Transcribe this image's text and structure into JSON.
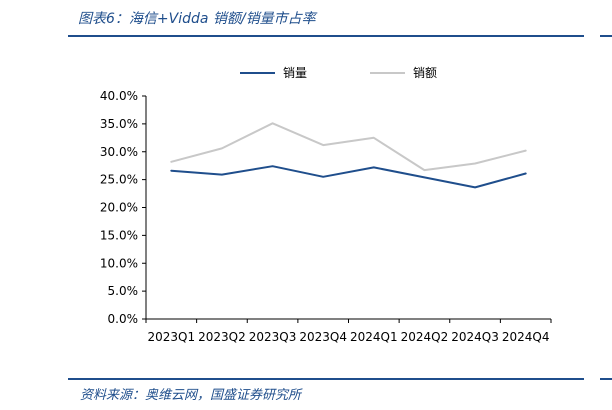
{
  "header": {
    "title": "图表6：海信+Vidda 销额/销量市占率"
  },
  "footer": {
    "source": "资料来源：奥维云网，国盛证券研究所"
  },
  "colors": {
    "brand": "#1f4e8c",
    "series_volume": "#1f4e8c",
    "series_value": "#c8c8c8"
  },
  "chart_data": {
    "type": "line",
    "title": "",
    "xlabel": "",
    "ylabel": "",
    "categories": [
      "2023Q1",
      "2023Q2",
      "2023Q3",
      "2023Q4",
      "2024Q1",
      "2024Q2",
      "2024Q3",
      "2024Q4"
    ],
    "series": [
      {
        "name": "销量",
        "values": [
          26.6,
          25.9,
          27.4,
          25.5,
          27.2,
          25.4,
          23.6,
          26.1
        ]
      },
      {
        "name": "销额",
        "values": [
          28.2,
          30.6,
          35.1,
          31.2,
          32.5,
          26.7,
          27.9,
          30.2
        ]
      }
    ],
    "ylim": [
      0,
      40
    ],
    "y_ticks": [
      "0.0%",
      "5.0%",
      "10.0%",
      "15.0%",
      "20.0%",
      "25.0%",
      "30.0%",
      "35.0%",
      "40.0%"
    ],
    "legend_position": "top-center",
    "grid": false
  }
}
